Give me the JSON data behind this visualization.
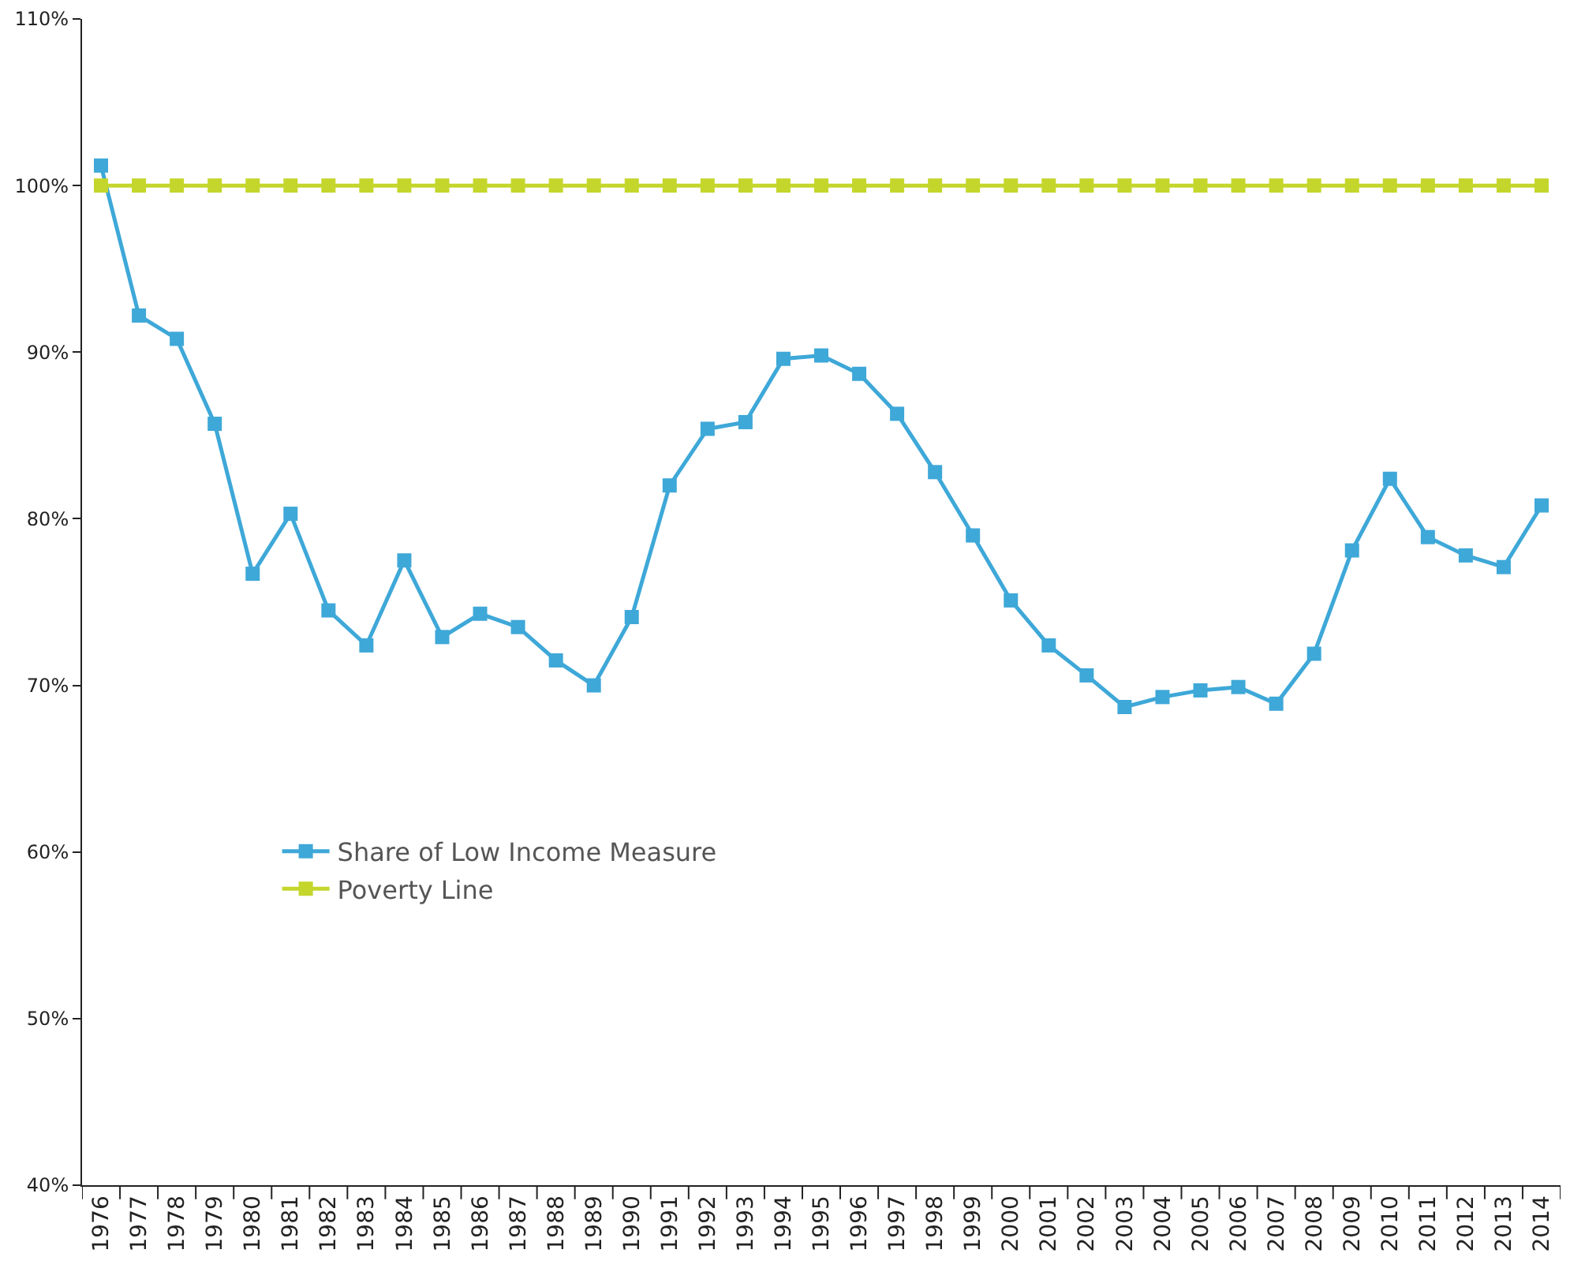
{
  "chart_data": {
    "type": "line",
    "categories": [
      "1976",
      "1977",
      "1978",
      "1979",
      "1980",
      "1981",
      "1982",
      "1983",
      "1984",
      "1985",
      "1986",
      "1987",
      "1988",
      "1989",
      "1990",
      "1991",
      "1992",
      "1993",
      "1994",
      "1995",
      "1996",
      "1997",
      "1998",
      "1999",
      "2000",
      "2001",
      "2002",
      "2003",
      "2004",
      "2005",
      "2006",
      "2007",
      "2008",
      "2009",
      "2010",
      "2011",
      "2012",
      "2013",
      "2014"
    ],
    "series": [
      {
        "name": "Share of Low Income Measure",
        "color": "#3ea8d8",
        "values": [
          101.2,
          92.2,
          90.8,
          85.7,
          76.7,
          80.3,
          74.5,
          72.4,
          77.5,
          72.9,
          74.3,
          73.5,
          71.5,
          70.0,
          74.1,
          82.0,
          85.4,
          85.8,
          89.6,
          89.8,
          88.7,
          86.3,
          82.8,
          79.0,
          75.1,
          72.4,
          70.6,
          68.7,
          69.3,
          69.7,
          69.9,
          68.9,
          71.9,
          78.1,
          82.4,
          78.9,
          77.8,
          77.1,
          80.8
        ]
      },
      {
        "name": "Poverty Line",
        "color": "#c4d62c",
        "values": [
          100,
          100,
          100,
          100,
          100,
          100,
          100,
          100,
          100,
          100,
          100,
          100,
          100,
          100,
          100,
          100,
          100,
          100,
          100,
          100,
          100,
          100,
          100,
          100,
          100,
          100,
          100,
          100,
          100,
          100,
          100,
          100,
          100,
          100,
          100,
          100,
          100,
          100,
          100
        ]
      }
    ],
    "ylim": [
      40,
      110
    ],
    "yticks": [
      {
        "value": 40,
        "label": "40%"
      },
      {
        "value": 50,
        "label": "50%"
      },
      {
        "value": 60,
        "label": "60%"
      },
      {
        "value": 70,
        "label": "70%"
      },
      {
        "value": 80,
        "label": "80%"
      },
      {
        "value": 90,
        "label": "90%"
      },
      {
        "value": 100,
        "label": "100%"
      },
      {
        "value": 110,
        "label": "110%"
      }
    ],
    "legend": "bottom",
    "marker": "square",
    "line_style": "solid"
  }
}
